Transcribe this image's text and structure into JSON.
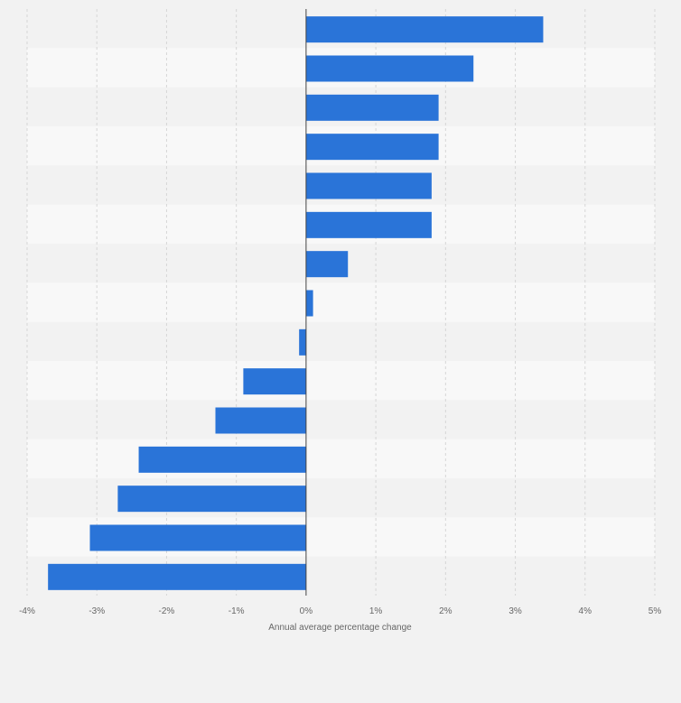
{
  "chart_data": {
    "type": "bar",
    "orientation": "horizontal",
    "title": "",
    "xlabel": "Annual average percentage change",
    "ylabel": "",
    "xlim": [
      -4,
      5
    ],
    "x_ticks": [
      "-4%",
      "-3%",
      "-2%",
      "-1%",
      "0%",
      "1%",
      "2%",
      "3%",
      "4%",
      "5%"
    ],
    "x_tick_values": [
      -4,
      -3,
      -2,
      -1,
      0,
      1,
      2,
      3,
      4,
      5
    ],
    "grid": "vertical dashed",
    "bar_color": "#2a74d8",
    "values": [
      3.4,
      2.4,
      1.9,
      1.9,
      1.8,
      1.8,
      0.6,
      0.1,
      -0.1,
      -0.9,
      -1.3,
      -2.4,
      -2.7,
      -3.1,
      -3.7
    ]
  }
}
